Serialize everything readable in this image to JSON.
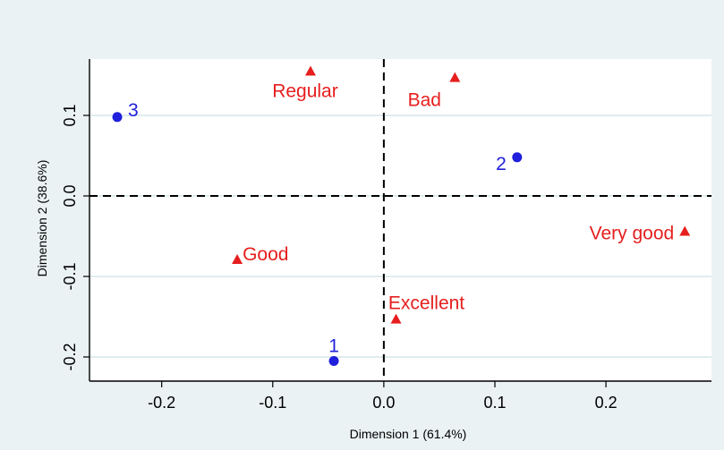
{
  "chart_data": {
    "type": "scatter",
    "title": "",
    "xlabel": "Dimension 1 (61.4%)",
    "ylabel": "Dimension 2 (38.6%)",
    "xlim": [
      -0.265,
      0.295
    ],
    "ylim": [
      -0.23,
      0.17
    ],
    "xticks": [
      -0.2,
      -0.1,
      0.0,
      0.1,
      0.2
    ],
    "xtick_labels": [
      "-0.2",
      "-0.1",
      "0.0",
      "0.1",
      "0.2"
    ],
    "yticks": [
      -0.2,
      -0.1,
      0.0,
      0.1
    ],
    "ytick_labels": [
      "-0.2",
      "-0.1",
      "0.0",
      "0.1"
    ],
    "grid": "horizontal",
    "reference_lines": {
      "x": 0,
      "y": 0,
      "style": "dashed"
    },
    "colors": {
      "background": "#eaf2f3",
      "plot_background": "#ffffff",
      "grid": "#e1ecee",
      "blue_series": "#1f1fdc",
      "red_series": "#e61e1e"
    },
    "series": [
      {
        "marker": "circle",
        "color": "#1f1fdc",
        "points": [
          {
            "label": "1",
            "x": -0.045,
            "y": -0.205
          },
          {
            "label": "2",
            "x": 0.12,
            "y": 0.048
          },
          {
            "label": "3",
            "x": -0.24,
            "y": 0.098
          }
        ]
      },
      {
        "marker": "triangle",
        "color": "#e61e1e",
        "points": [
          {
            "label": "Regular",
            "x": -0.066,
            "y": 0.155
          },
          {
            "label": "Bad",
            "x": 0.064,
            "y": 0.147
          },
          {
            "label": "Very good",
            "x": 0.271,
            "y": -0.044
          },
          {
            "label": "Good",
            "x": -0.132,
            "y": -0.079
          },
          {
            "label": "Excellent",
            "x": 0.011,
            "y": -0.153
          }
        ]
      }
    ]
  }
}
